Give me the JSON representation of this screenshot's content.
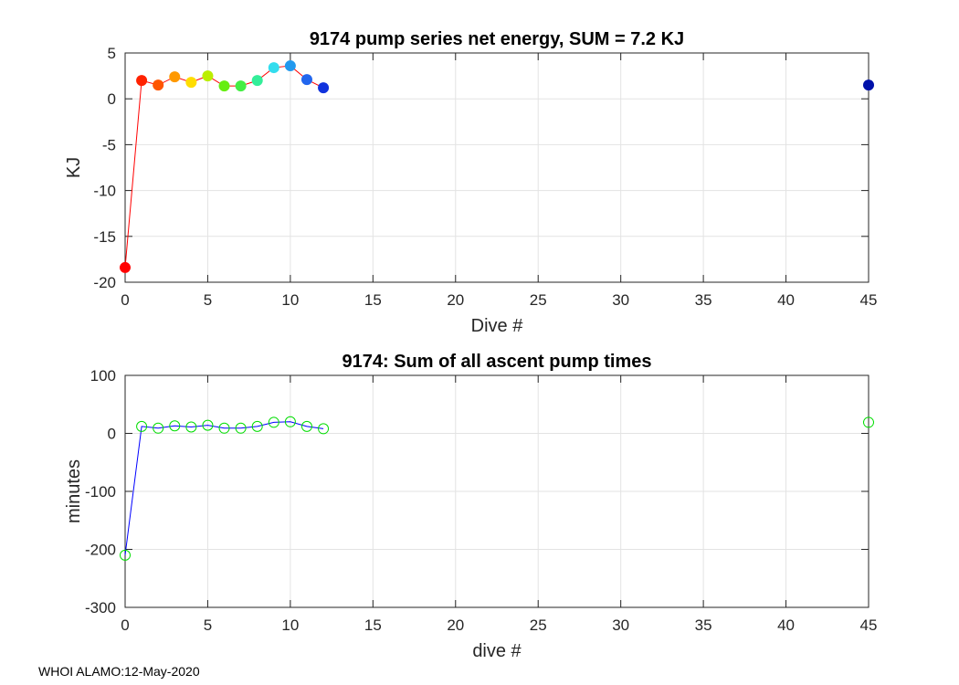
{
  "footer": {
    "text": "WHOI ALAMO:12-May-2020"
  },
  "chart_data": [
    {
      "type": "line",
      "title": "9174 pump series net energy, SUM =   7.2 KJ",
      "xlabel": "Dive #",
      "ylabel": "KJ",
      "xlim": [
        0,
        45
      ],
      "ylim": [
        -20,
        5
      ],
      "xticks": [
        0,
        5,
        10,
        15,
        20,
        25,
        30,
        35,
        40,
        45
      ],
      "xtick_labels": [
        "0",
        "5",
        "10",
        "15",
        "20",
        "25",
        "30",
        "35",
        "40",
        "45"
      ],
      "yticks": [
        5,
        0,
        -5,
        -10,
        -15,
        -20
      ],
      "ytick_labels": [
        "5",
        "0",
        "-5",
        "-10",
        "-15",
        "-20"
      ],
      "grid": true,
      "line_color": "#ff0000",
      "marker": "filled-circle",
      "line_x": [
        0,
        1,
        2,
        3,
        4,
        5,
        6,
        7,
        8,
        9,
        10,
        11,
        12
      ],
      "line_y": [
        -18.4,
        2.0,
        1.5,
        2.4,
        1.8,
        2.5,
        1.4,
        1.4,
        2.0,
        3.4,
        3.6,
        2.1,
        1.2
      ],
      "points": [
        {
          "x": 0,
          "y": -18.4,
          "color": "#ff0000"
        },
        {
          "x": 1,
          "y": 2.0,
          "color": "#ff2200"
        },
        {
          "x": 2,
          "y": 1.5,
          "color": "#ff5500"
        },
        {
          "x": 3,
          "y": 2.4,
          "color": "#ff9900"
        },
        {
          "x": 4,
          "y": 1.8,
          "color": "#ffdd00"
        },
        {
          "x": 5,
          "y": 2.5,
          "color": "#bbee00"
        },
        {
          "x": 6,
          "y": 1.4,
          "color": "#66ee11"
        },
        {
          "x": 7,
          "y": 1.4,
          "color": "#44ee44"
        },
        {
          "x": 8,
          "y": 2.0,
          "color": "#33ee99"
        },
        {
          "x": 9,
          "y": 3.4,
          "color": "#33ddee"
        },
        {
          "x": 10,
          "y": 3.6,
          "color": "#2299ee"
        },
        {
          "x": 11,
          "y": 2.1,
          "color": "#2266ee"
        },
        {
          "x": 12,
          "y": 1.2,
          "color": "#1133dd"
        },
        {
          "x": 45,
          "y": 1.5,
          "color": "#0011aa"
        }
      ]
    },
    {
      "type": "line",
      "title": "9174: Sum of all ascent pump times",
      "xlabel": "dive #",
      "ylabel": "minutes",
      "xlim": [
        0,
        45
      ],
      "ylim": [
        -300,
        100
      ],
      "xticks": [
        0,
        5,
        10,
        15,
        20,
        25,
        30,
        35,
        40,
        45
      ],
      "xtick_labels": [
        "0",
        "5",
        "10",
        "15",
        "20",
        "25",
        "30",
        "35",
        "40",
        "45"
      ],
      "yticks": [
        100,
        0,
        -100,
        -200,
        -300
      ],
      "ytick_labels": [
        "100",
        "0",
        "-100",
        "-200",
        "-300"
      ],
      "grid": true,
      "line_color": "#0000ff",
      "marker": "open-circle",
      "marker_color": "#00dd00",
      "line_x": [
        0,
        1,
        2,
        3,
        4,
        5,
        6,
        7,
        8,
        9,
        10,
        11,
        12
      ],
      "line_y": [
        -210,
        12,
        9,
        13,
        11,
        14,
        9,
        9,
        12,
        19,
        20,
        12,
        8
      ],
      "points": [
        {
          "x": 0,
          "y": -210
        },
        {
          "x": 1,
          "y": 12
        },
        {
          "x": 2,
          "y": 9
        },
        {
          "x": 3,
          "y": 13
        },
        {
          "x": 4,
          "y": 11
        },
        {
          "x": 5,
          "y": 14
        },
        {
          "x": 6,
          "y": 9
        },
        {
          "x": 7,
          "y": 9
        },
        {
          "x": 8,
          "y": 12
        },
        {
          "x": 9,
          "y": 19
        },
        {
          "x": 10,
          "y": 20
        },
        {
          "x": 11,
          "y": 12
        },
        {
          "x": 12,
          "y": 8
        },
        {
          "x": 45,
          "y": 19
        }
      ]
    }
  ]
}
